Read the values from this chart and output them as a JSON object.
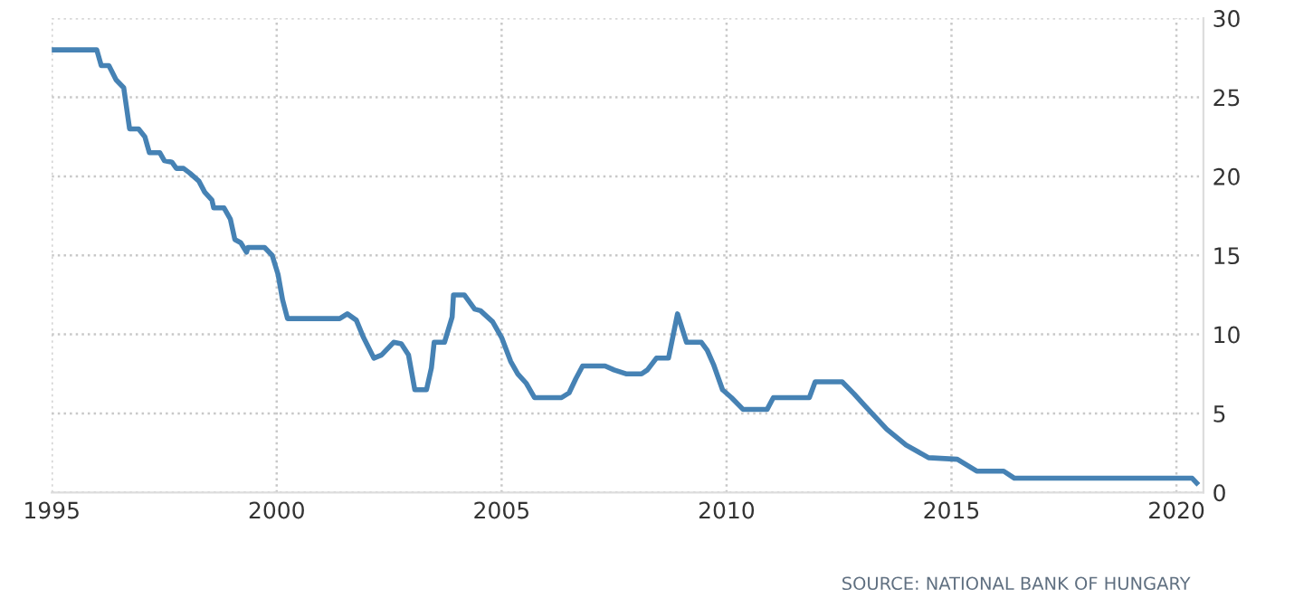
{
  "chart_data": {
    "type": "line",
    "x": [
      1995,
      1996.0,
      1996.1,
      1996.27,
      1996.43,
      1996.6,
      1996.73,
      1996.93,
      1997.07,
      1997.17,
      1997.4,
      1997.5,
      1997.67,
      1997.77,
      1997.93,
      1998.07,
      1998.27,
      1998.4,
      1998.56,
      1998.6,
      1998.83,
      1998.97,
      1999.07,
      1999.2,
      1999.33,
      1999.36,
      1999.73,
      1999.9,
      2000.03,
      2000.13,
      2000.24,
      2001.4,
      2001.57,
      2001.77,
      2001.93,
      2002.16,
      2002.33,
      2002.6,
      2002.77,
      2002.93,
      2003.07,
      2003.33,
      2003.44,
      2003.5,
      2003.73,
      2003.9,
      2003.93,
      2004.17,
      2004.4,
      2004.53,
      2004.8,
      2005.0,
      2005.2,
      2005.36,
      2005.55,
      2005.73,
      2006.33,
      2006.5,
      2006.65,
      2006.8,
      2007.3,
      2007.5,
      2007.78,
      2008.11,
      2008.24,
      2008.44,
      2008.71,
      2008.91,
      2009.11,
      2009.44,
      2009.57,
      2009.71,
      2009.91,
      2010.11,
      2010.37,
      2010.9,
      2011.04,
      2011.84,
      2011.97,
      2012.57,
      2012.83,
      2013.1,
      2013.56,
      2013.99,
      2014.49,
      2015.13,
      2015.56,
      2016.16,
      2016.4,
      2020.35,
      2020.45
    ],
    "series": [
      {
        "color": "#4682b4",
        "values": [
          28,
          28,
          27,
          27,
          26.1,
          25.6,
          23,
          23,
          22.5,
          21.5,
          21.5,
          21,
          20.9,
          20.5,
          20.5,
          20.2,
          19.7,
          19,
          18.5,
          18,
          18,
          17.3,
          16,
          15.8,
          15.2,
          15.5,
          15.5,
          15,
          13.8,
          12.2,
          11,
          11,
          11.3,
          10.9,
          9.8,
          8.5,
          8.7,
          9.5,
          9.4,
          8.7,
          6.5,
          6.5,
          7.9,
          9.5,
          9.5,
          11.1,
          12.5,
          12.5,
          11.6,
          11.5,
          10.8,
          9.8,
          8.3,
          7.5,
          6.9,
          6,
          6,
          6.3,
          7.2,
          8,
          8,
          7.75,
          7.5,
          7.5,
          7.75,
          8.5,
          8.5,
          11.3,
          9.5,
          9.5,
          9,
          8.1,
          6.5,
          6,
          5.25,
          5.25,
          6,
          6,
          7,
          7,
          6.25,
          5.4,
          4,
          3,
          2.2,
          2.1,
          1.35,
          1.35,
          0.9,
          0.9,
          0.6
        ]
      }
    ],
    "xlim": [
      1995,
      2020.6
    ],
    "xticks": [
      1995,
      2000,
      2005,
      2010,
      2015,
      2020
    ],
    "ylim": [
      0,
      30
    ],
    "yticks": [
      0,
      5,
      10,
      15,
      20,
      25,
      30
    ],
    "grid": true,
    "line_style": "solid",
    "marker": "none",
    "annotations": [
      "SOURCE: NATIONAL BANK OF HUNGARY"
    ]
  }
}
